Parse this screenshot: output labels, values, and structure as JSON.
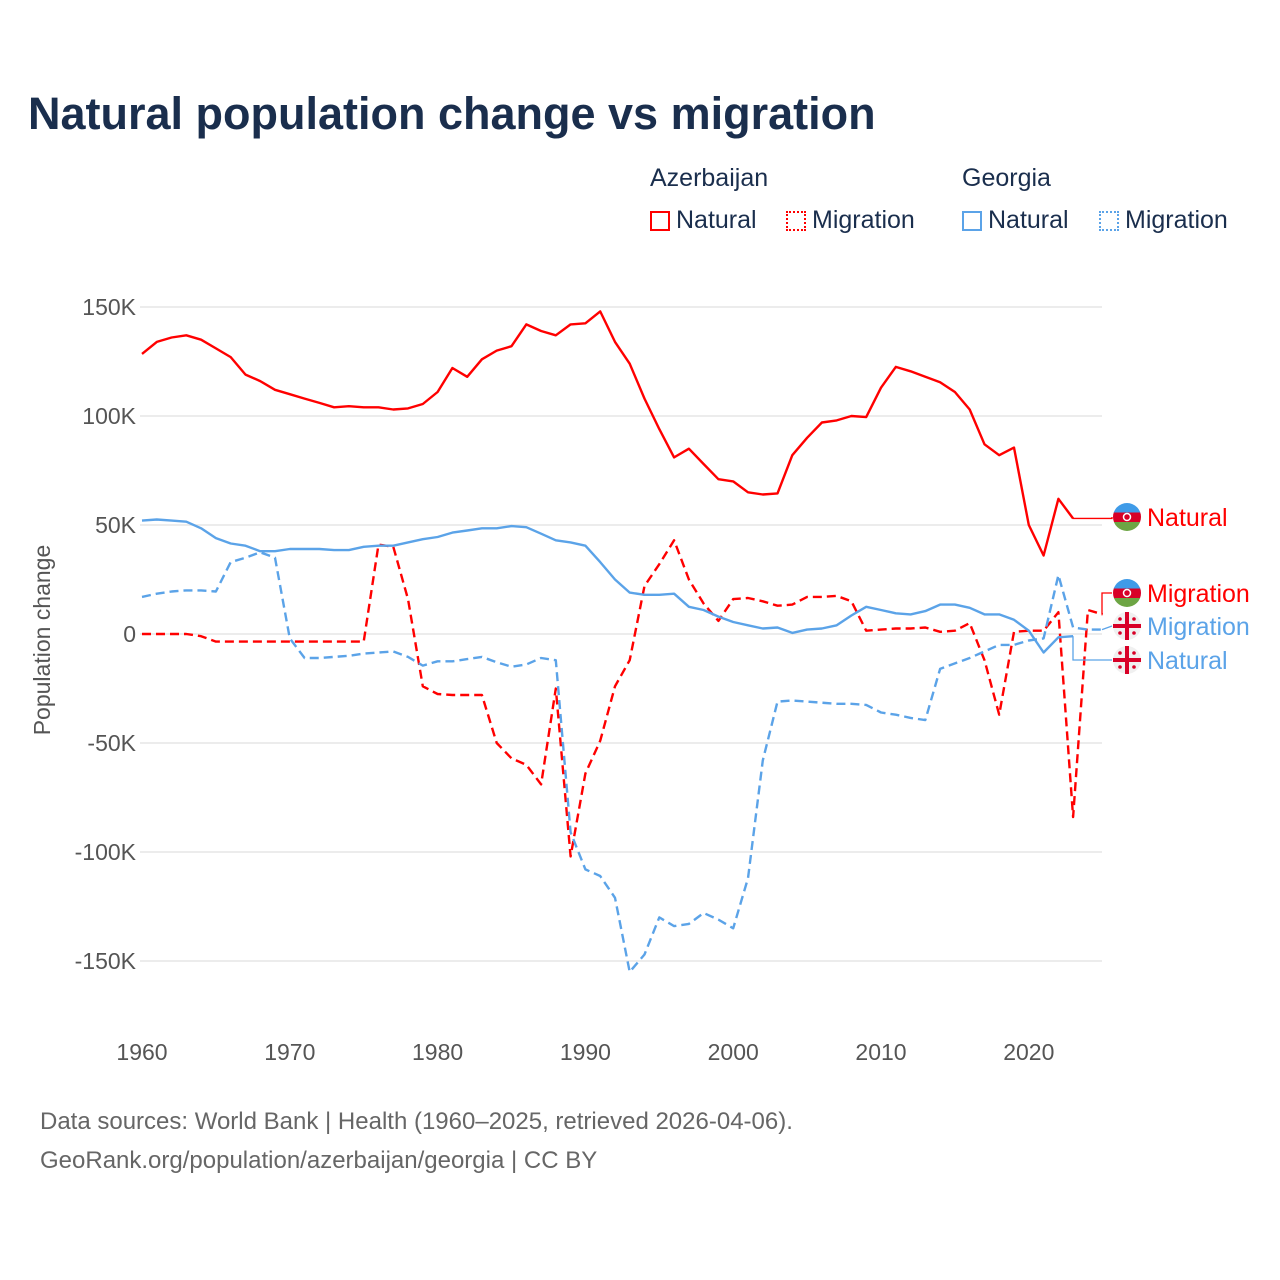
{
  "chart_data": {
    "type": "line",
    "title": "Natural population change vs migration",
    "xlabel": "",
    "ylabel": "Population change",
    "xlim": [
      1960,
      2025
    ],
    "ylim": [
      -175000,
      160000
    ],
    "x_ticks": [
      "1960",
      "1970",
      "1980",
      "1990",
      "2000",
      "2010",
      "2020"
    ],
    "y_ticks": [
      {
        "v": 150000,
        "t": "150K"
      },
      {
        "v": 100000,
        "t": "100K"
      },
      {
        "v": 50000,
        "t": "50K"
      },
      {
        "v": 0,
        "t": "0"
      },
      {
        "v": -50000,
        "t": "-50K"
      },
      {
        "v": -100000,
        "t": "-100K"
      },
      {
        "v": -150000,
        "t": "-150K"
      }
    ],
    "grid": true,
    "legend": {
      "placement": "top-right",
      "groups": [
        {
          "name": "Azerbaijan",
          "items": [
            "Natural",
            "Migration"
          ]
        },
        {
          "name": "Georgia",
          "items": [
            "Natural",
            "Migration"
          ]
        }
      ]
    },
    "series": [
      {
        "name": "Natural",
        "country": "Azerbaijan",
        "color": "#ff0000",
        "dash": false,
        "start": 1960,
        "values_k": [
          128.5,
          134,
          136,
          137,
          135,
          131,
          127,
          119,
          116,
          112,
          110,
          108,
          106,
          104,
          104.5,
          104,
          104,
          103,
          103.5,
          105.5,
          111,
          122,
          118,
          126,
          130,
          132,
          142,
          139,
          137,
          142,
          142.5,
          148,
          134,
          124,
          108,
          94,
          81,
          85,
          78,
          71,
          70,
          65,
          64,
          64.5,
          82,
          90,
          97,
          98,
          100,
          99.5,
          113,
          122.5,
          120.5,
          118,
          115.5,
          111,
          103,
          87,
          82,
          85.5,
          50,
          36,
          62,
          53
        ]
      },
      {
        "name": "Migration",
        "country": "Azerbaijan",
        "color": "#ff0000",
        "dash": true,
        "start": 1960,
        "values_k": [
          0,
          0,
          0,
          0,
          -1,
          -3.5,
          -3.5,
          -3.5,
          -3.5,
          -3.5,
          -3.5,
          -3.5,
          -3.5,
          -3.5,
          -3.5,
          -3.5,
          41,
          40,
          16,
          -24,
          -27.5,
          -28,
          -28,
          -28,
          -50,
          -57,
          -60,
          -69,
          -25,
          -102,
          -64,
          -49,
          -24,
          -12,
          22,
          32,
          43,
          25,
          14,
          6,
          16,
          16.5,
          15,
          13,
          13.5,
          17,
          17,
          17.5,
          15,
          1.5,
          2,
          2.5,
          2.5,
          3,
          1,
          1.5,
          5,
          -12,
          -37,
          1,
          1.5,
          1.5,
          10,
          -84,
          11,
          9
        ]
      },
      {
        "name": "Natural",
        "country": "Georgia",
        "color": "#5ba3e8",
        "dash": false,
        "start": 1960,
        "values_k": [
          52,
          52.5,
          52,
          51.5,
          48.5,
          44,
          41.5,
          40.5,
          38,
          38,
          39,
          39,
          39,
          38.5,
          38.5,
          40,
          40.5,
          40.5,
          42,
          43.5,
          44.5,
          46.5,
          47.5,
          48.5,
          48.5,
          49.5,
          49,
          46,
          43,
          42,
          40.5,
          33,
          25,
          19,
          18,
          18,
          18.5,
          12.5,
          11,
          8,
          5.5,
          4,
          2.5,
          3,
          0.5,
          2,
          2.5,
          4,
          8.5,
          12.5,
          11,
          9.5,
          9,
          10.5,
          13.5,
          13.5,
          12,
          9,
          9,
          6.5,
          1.5,
          -8.5,
          -1.5,
          -1
        ]
      },
      {
        "name": "Migration",
        "country": "Georgia",
        "color": "#5ba3e8",
        "dash": true,
        "start": 1960,
        "values_k": [
          17,
          18.5,
          19.5,
          20,
          20,
          19.5,
          33,
          35,
          37.5,
          35,
          -2,
          -11,
          -11,
          -10.5,
          -10,
          -9,
          -8.5,
          -8,
          -10.5,
          -14.5,
          -12.5,
          -12.5,
          -11.5,
          -10.5,
          -13,
          -15,
          -14,
          -11,
          -12,
          -91,
          -108,
          -111,
          -121,
          -155,
          -147,
          -130,
          -134,
          -133,
          -128,
          -131,
          -135,
          -112,
          -58,
          -31,
          -30.5,
          -31,
          -31.5,
          -32,
          -32,
          -32.5,
          -36,
          -37,
          -38.5,
          -39.5,
          -16,
          -13.5,
          -11,
          -8,
          -5,
          -5,
          -3,
          -2,
          27,
          3,
          2,
          2
        ]
      }
    ],
    "end_labels": [
      {
        "text": "Natural",
        "country": "Azerbaijan",
        "color": "#ff0000"
      },
      {
        "text": "Migration",
        "country": "Azerbaijan",
        "color": "#ff0000"
      },
      {
        "text": "Migration",
        "country": "Georgia",
        "color": "#5ba3e8"
      },
      {
        "text": "Natural",
        "country": "Georgia",
        "color": "#5ba3e8"
      }
    ]
  },
  "legend": {
    "az": "Azerbaijan",
    "ge": "Georgia",
    "natural": "Natural",
    "migration": "Migration"
  },
  "source": {
    "line1": "Data sources: World Bank | Health (1960–2025, retrieved 2026-04-06).",
    "line2": "GeoRank.org/population/azerbaijan/georgia | CC BY"
  }
}
